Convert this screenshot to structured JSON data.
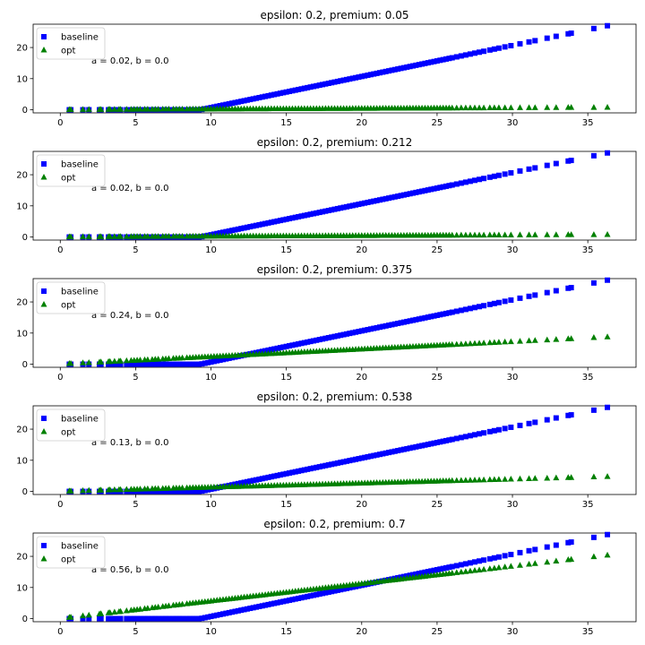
{
  "chart_data": [
    {
      "type": "scatter",
      "title": "epsilon: 0.2, premium: 0.05",
      "annotation": "a = 0.02, b = 0.0",
      "xlim": [
        -1.8,
        38.2
      ],
      "ylim": [
        -1,
        27.5
      ],
      "xticks": [
        "0",
        "5",
        "10",
        "15",
        "20",
        "25",
        "30",
        "35"
      ],
      "yticks": [
        "0",
        "10",
        "20"
      ],
      "legend": {
        "position": "upper-left",
        "entries": [
          "baseline",
          "opt"
        ]
      },
      "series": [
        {
          "name": "baseline",
          "marker": "square",
          "color": "#0000ff",
          "rule": {
            "type": "hinge",
            "threshold": 9.3,
            "slope": 1.0
          }
        },
        {
          "name": "opt",
          "marker": "triangle",
          "color": "#008000",
          "rule": {
            "type": "linear",
            "a": 0.02,
            "b": 0.0
          }
        }
      ]
    },
    {
      "type": "scatter",
      "title": "epsilon: 0.2, premium: 0.212",
      "annotation": "a = 0.02, b = 0.0",
      "xlim": [
        -1.8,
        38.2
      ],
      "ylim": [
        -1,
        27.5
      ],
      "xticks": [
        "0",
        "5",
        "10",
        "15",
        "20",
        "25",
        "30",
        "35"
      ],
      "yticks": [
        "0",
        "10",
        "20"
      ],
      "legend": {
        "position": "upper-left",
        "entries": [
          "baseline",
          "opt"
        ]
      },
      "series": [
        {
          "name": "baseline",
          "marker": "square",
          "color": "#0000ff",
          "rule": {
            "type": "hinge",
            "threshold": 9.3,
            "slope": 1.0
          }
        },
        {
          "name": "opt",
          "marker": "triangle",
          "color": "#008000",
          "rule": {
            "type": "linear",
            "a": 0.02,
            "b": 0.0
          }
        }
      ]
    },
    {
      "type": "scatter",
      "title": "epsilon: 0.2, premium: 0.375",
      "annotation": "a = 0.24, b = 0.0",
      "xlim": [
        -1.8,
        38.2
      ],
      "ylim": [
        -1,
        27.5
      ],
      "xticks": [
        "0",
        "5",
        "10",
        "15",
        "20",
        "25",
        "30",
        "35"
      ],
      "yticks": [
        "0",
        "10",
        "20"
      ],
      "legend": {
        "position": "upper-left",
        "entries": [
          "baseline",
          "opt"
        ]
      },
      "series": [
        {
          "name": "baseline",
          "marker": "square",
          "color": "#0000ff",
          "rule": {
            "type": "hinge",
            "threshold": 9.3,
            "slope": 1.0
          }
        },
        {
          "name": "opt",
          "marker": "triangle",
          "color": "#008000",
          "rule": {
            "type": "linear",
            "a": 0.24,
            "b": 0.0
          }
        }
      ]
    },
    {
      "type": "scatter",
      "title": "epsilon: 0.2, premium: 0.538",
      "annotation": "a = 0.13, b = 0.0",
      "xlim": [
        -1.8,
        38.2
      ],
      "ylim": [
        -1,
        27.5
      ],
      "xticks": [
        "0",
        "5",
        "10",
        "15",
        "20",
        "25",
        "30",
        "35"
      ],
      "yticks": [
        "0",
        "10",
        "20"
      ],
      "legend": {
        "position": "upper-left",
        "entries": [
          "baseline",
          "opt"
        ]
      },
      "series": [
        {
          "name": "baseline",
          "marker": "square",
          "color": "#0000ff",
          "rule": {
            "type": "hinge",
            "threshold": 9.3,
            "slope": 1.0
          }
        },
        {
          "name": "opt",
          "marker": "triangle",
          "color": "#008000",
          "rule": {
            "type": "linear",
            "a": 0.13,
            "b": 0.0
          }
        }
      ]
    },
    {
      "type": "scatter",
      "title": "epsilon: 0.2, premium: 0.7",
      "annotation": "a = 0.56, b = 0.0",
      "xlim": [
        -1.8,
        38.2
      ],
      "ylim": [
        -1,
        27.5
      ],
      "xticks": [
        "0",
        "5",
        "10",
        "15",
        "20",
        "25",
        "30",
        "35"
      ],
      "yticks": [
        "0",
        "10",
        "20"
      ],
      "legend": {
        "position": "upper-left",
        "entries": [
          "baseline",
          "opt"
        ]
      },
      "series": [
        {
          "name": "baseline",
          "marker": "square",
          "color": "#0000ff",
          "rule": {
            "type": "hinge",
            "threshold": 9.3,
            "slope": 1.0
          }
        },
        {
          "name": "opt",
          "marker": "triangle",
          "color": "#008000",
          "rule": {
            "type": "linear",
            "a": 0.56,
            "b": 0.0
          }
        }
      ]
    }
  ],
  "x_points": [
    0.6,
    0.7,
    1.5,
    1.9,
    2.6,
    2.7,
    3.2,
    3.3,
    3.6,
    3.9,
    4.0,
    4.4,
    4.7,
    4.9,
    5.1,
    5.3,
    5.6,
    5.8,
    6.1,
    6.3,
    6.5,
    6.8,
    7.0,
    7.2,
    7.5,
    7.7,
    7.9,
    8.1,
    8.4,
    8.6,
    8.8,
    9.0,
    9.2,
    9.4,
    9.6,
    9.8,
    10.0,
    10.2,
    10.4,
    10.6,
    10.8,
    11.0,
    11.2,
    11.4,
    11.6,
    11.8,
    12.0,
    12.2,
    12.4,
    12.6,
    12.8,
    13.0,
    13.2,
    13.4,
    13.6,
    13.8,
    14.0,
    14.2,
    14.4,
    14.6,
    14.8,
    15.0,
    15.2,
    15.4,
    15.6,
    15.8,
    16.0,
    16.2,
    16.4,
    16.6,
    16.8,
    17.0,
    17.2,
    17.4,
    17.6,
    17.8,
    18.0,
    18.2,
    18.4,
    18.6,
    18.8,
    19.0,
    19.2,
    19.4,
    19.6,
    19.8,
    20.0,
    20.2,
    20.4,
    20.6,
    20.8,
    21.0,
    21.2,
    21.4,
    21.6,
    21.8,
    22.0,
    22.2,
    22.4,
    22.6,
    22.8,
    23.0,
    23.2,
    23.4,
    23.6,
    23.8,
    24.0,
    24.2,
    24.4,
    24.6,
    24.8,
    25.0,
    25.2,
    25.4,
    25.6,
    25.8,
    26.0,
    26.3,
    26.6,
    26.9,
    27.2,
    27.5,
    27.8,
    28.1,
    28.5,
    28.8,
    29.1,
    29.5,
    29.9,
    30.5,
    31.1,
    31.5,
    32.3,
    32.9,
    33.7,
    33.9,
    35.4,
    36.3
  ]
}
